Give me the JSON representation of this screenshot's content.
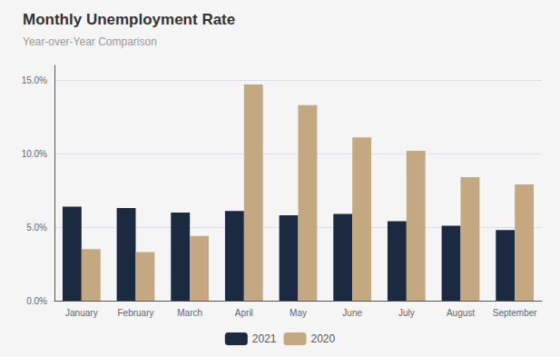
{
  "chart_data": {
    "type": "bar",
    "title": "Monthly Unemployment Rate",
    "subtitle": "Year-over-Year Comparison",
    "categories": [
      "January",
      "February",
      "March",
      "April",
      "May",
      "June",
      "July",
      "August",
      "September"
    ],
    "series": [
      {
        "name": "2021",
        "color": "#1b2a40",
        "values": [
          6.4,
          6.3,
          6.0,
          6.1,
          5.8,
          5.9,
          5.4,
          5.1,
          4.8
        ]
      },
      {
        "name": "2020",
        "color": "#c4a882",
        "values": [
          3.5,
          3.3,
          4.4,
          14.7,
          13.3,
          11.1,
          10.2,
          8.4,
          7.9
        ]
      }
    ],
    "ylim": [
      0,
      16
    ],
    "yticks": [
      {
        "value": 0,
        "label": "0.0%"
      },
      {
        "value": 5,
        "label": "5.0%"
      },
      {
        "value": 10,
        "label": "10.0%"
      },
      {
        "value": 15,
        "label": "15.0%"
      }
    ],
    "grid": true,
    "legend": "bottom"
  }
}
